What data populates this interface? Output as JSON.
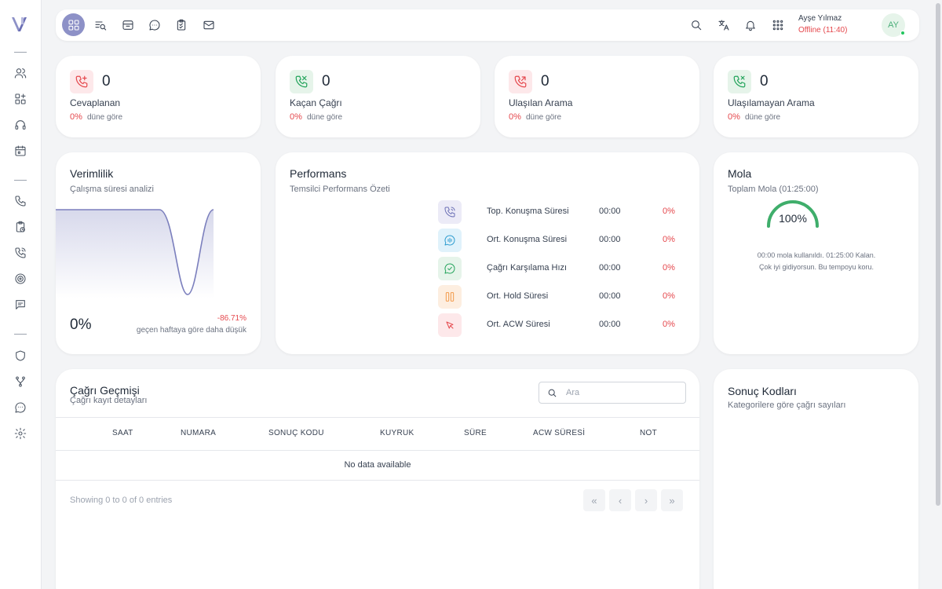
{
  "topbar": {
    "user_name": "Ayşe Yılmaz",
    "user_status": "Offline (11:40)",
    "avatar_initials": "AY"
  },
  "stats": [
    {
      "value": "0",
      "label": "Cevaplanan",
      "pct": "0%",
      "sub": "düne göre",
      "icon": "phone-incoming-icon",
      "bg": "#fde8ea",
      "stroke": "#e5484d"
    },
    {
      "value": "0",
      "label": "Kaçan Çağrı",
      "pct": "0%",
      "sub": "düne göre",
      "icon": "phone-missed-icon",
      "bg": "#e6f4ea",
      "stroke": "#22a35a"
    },
    {
      "value": "0",
      "label": "Ulaşılan Arama",
      "pct": "0%",
      "sub": "düne göre",
      "icon": "phone-outgoing-icon",
      "bg": "#fde8ea",
      "stroke": "#e5484d"
    },
    {
      "value": "0",
      "label": "Ulaşılamayan Arama",
      "pct": "0%",
      "sub": "düne göre",
      "icon": "phone-x-icon",
      "bg": "#e6f4ea",
      "stroke": "#22a35a"
    }
  ],
  "verimlilik": {
    "title": "Verimlilik",
    "subtitle": "Çalışma süresi analizi",
    "value": "0%",
    "change": "-86.71%",
    "change_note": "geçen haftaya göre daha düşük"
  },
  "performans": {
    "title": "Performans",
    "subtitle": "Temsilci Performans Özeti",
    "rows": [
      {
        "label": "Top. Konuşma Süresi",
        "time": "00:00",
        "pct": "0%",
        "icon": "phone-call-icon",
        "bg": "#ecebf7",
        "stroke": "#6b6fb5"
      },
      {
        "label": "Ort. Konuşma Süresi",
        "time": "00:00",
        "pct": "0%",
        "icon": "audio-message-icon",
        "bg": "#e0f2fb",
        "stroke": "#2b9bcf"
      },
      {
        "label": "Çağrı Karşılama Hızı",
        "time": "00:00",
        "pct": "0%",
        "icon": "check-message-icon",
        "bg": "#e6f4ea",
        "stroke": "#22a35a"
      },
      {
        "label": "Ort. Hold Süresi",
        "time": "00:00",
        "pct": "0%",
        "icon": "pause-icon",
        "bg": "#fdeee0",
        "stroke": "#f29a4a"
      },
      {
        "label": "Ort. ACW Süresi",
        "time": "00:00",
        "pct": "0%",
        "icon": "cursor-click-icon",
        "bg": "#fde8ea",
        "stroke": "#e5484d"
      }
    ]
  },
  "mola": {
    "title": "Mola",
    "subtitle": "Toplam Mola (01:25:00)",
    "gauge_value": "100%",
    "gauge_fraction": 1,
    "gauge_color": "#3fae6b",
    "note_line1": "00:00 mola kullanıldı. 01:25:00 Kalan.",
    "note_line2": "Çok iyi gidiyorsun. Bu tempoyu koru."
  },
  "cagri": {
    "title": "Çağrı Geçmişi",
    "subtitle": "Çağrı kayıt detayları",
    "search_placeholder": "Ara",
    "columns": [
      "SAAT",
      "NUMARA",
      "SONUÇ KODU",
      "KUYRUK",
      "SÜRE",
      "ACW SÜRESİ",
      "NOT"
    ],
    "empty": "No data available",
    "showing": "Showing 0 to 0 of 0 entries",
    "pagination": [
      "«",
      "‹",
      "›",
      "»"
    ]
  },
  "sonuc": {
    "title": "Sonuç Kodları",
    "subtitle": "Kategorilere göre çağrı sayıları"
  }
}
